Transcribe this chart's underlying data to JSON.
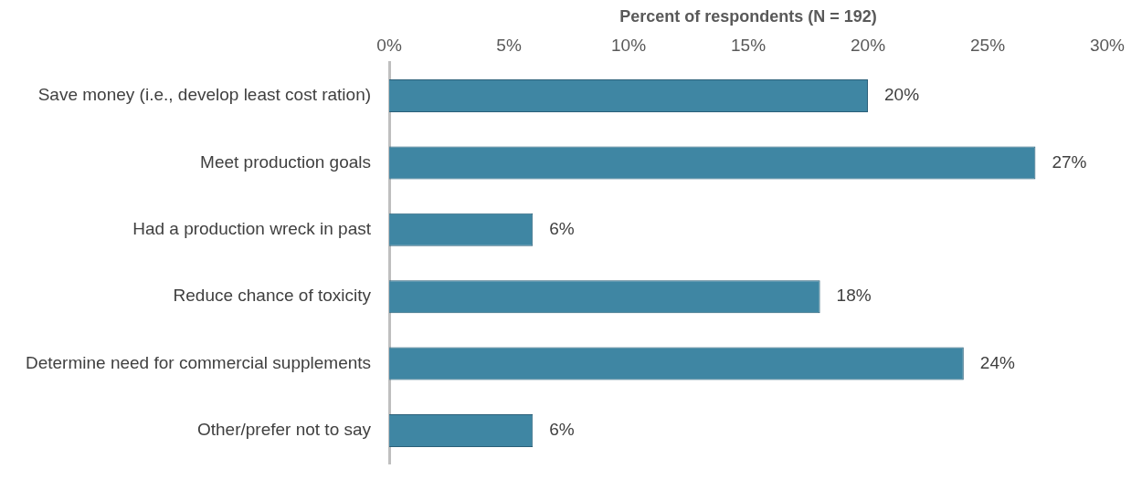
{
  "chart_data": {
    "type": "bar",
    "orientation": "horizontal",
    "xlabel": "Percent of respondents (N = 192)",
    "categories": [
      "Save money (i.e., develop least cost ration)",
      "Meet production goals",
      "Had a production wreck in past",
      "Reduce chance of toxicity",
      "Determine need for commercial supplements",
      "Other/prefer not to say"
    ],
    "values": [
      20,
      27,
      6,
      18,
      24,
      6
    ],
    "color": "#3f86a3",
    "xlim": [
      0,
      30
    ],
    "xticks": [
      {
        "value": 0,
        "label": "0%"
      },
      {
        "value": 5,
        "label": "5%"
      },
      {
        "value": 10,
        "label": "10%"
      },
      {
        "value": 15,
        "label": "15%"
      },
      {
        "value": 20,
        "label": "20%"
      },
      {
        "value": 25,
        "label": "25%"
      },
      {
        "value": 30,
        "label": "30%"
      }
    ],
    "value_labels": [
      "20%",
      "27%",
      "6%",
      "18%",
      "24%",
      "6%"
    ],
    "grid": false,
    "legend": false
  }
}
